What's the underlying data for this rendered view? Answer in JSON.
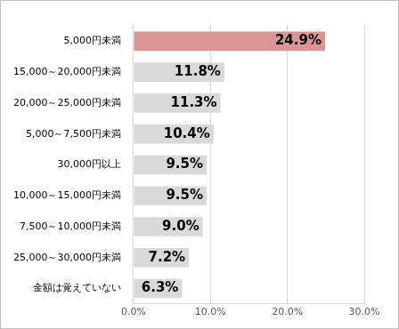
{
  "chart_data": {
    "type": "bar",
    "orientation": "horizontal",
    "categories": [
      "5,000円未満",
      "15,000～20,000円未満",
      "20,000～25,000円未満",
      "5,000～7,500円未満",
      "30,000円以上",
      "10,000～15,000円未満",
      "7,500～10,000円未満",
      "25,000～30,000円未満",
      "金額は覚えていない"
    ],
    "values": [
      24.9,
      11.8,
      11.3,
      10.4,
      9.5,
      9.5,
      9.0,
      7.2,
      6.3
    ],
    "value_labels": [
      "24.9%",
      "11.8%",
      "11.3%",
      "10.4%",
      "9.5%",
      "9.5%",
      "9.0%",
      "7.2%",
      "6.3%"
    ],
    "colors": [
      "#da9694",
      "#d9d9d9",
      "#d9d9d9",
      "#d9d9d9",
      "#d9d9d9",
      "#d9d9d9",
      "#d9d9d9",
      "#d9d9d9",
      "#d9d9d9"
    ],
    "xlim": [
      0,
      30
    ],
    "xticks": [
      {
        "value": 0,
        "label": "0.0%"
      },
      {
        "value": 10,
        "label": "10.0%"
      },
      {
        "value": 20,
        "label": "20.0%"
      },
      {
        "value": 30,
        "label": "30.0%"
      }
    ],
    "grid": true,
    "data_labels": true
  }
}
